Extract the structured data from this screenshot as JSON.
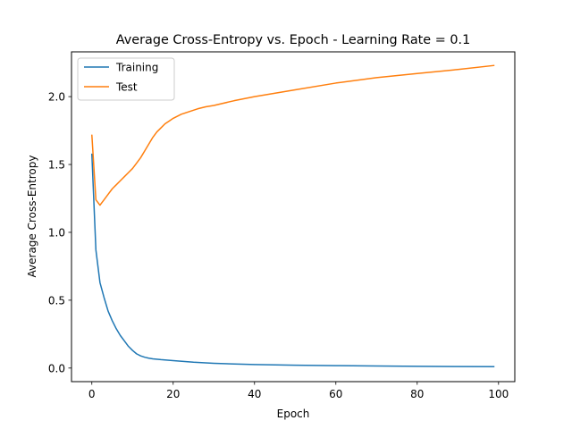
{
  "chart_data": {
    "type": "line",
    "title": "Average Cross-Entropy vs. Epoch - Learning Rate = 0.1",
    "xlabel": "Epoch",
    "ylabel": "Average Cross-Entropy",
    "xlim": [
      -5,
      104
    ],
    "ylim": [
      -0.1,
      2.33
    ],
    "xticks": [
      0,
      20,
      40,
      60,
      80,
      100
    ],
    "yticks": [
      0.0,
      0.5,
      1.0,
      1.5,
      2.0
    ],
    "grid": false,
    "legend_position": "top-left",
    "series": [
      {
        "name": "Training",
        "color": "#1f77b4",
        "x": [
          0,
          1,
          2,
          3,
          4,
          5,
          6,
          7,
          8,
          9,
          10,
          11,
          12,
          13,
          14,
          15,
          17,
          20,
          25,
          30,
          35,
          40,
          50,
          60,
          70,
          80,
          90,
          99
        ],
        "y": [
          1.58,
          0.87,
          0.63,
          0.52,
          0.42,
          0.35,
          0.29,
          0.24,
          0.2,
          0.16,
          0.13,
          0.105,
          0.09,
          0.08,
          0.073,
          0.068,
          0.062,
          0.055,
          0.043,
          0.035,
          0.03,
          0.026,
          0.021,
          0.018,
          0.015,
          0.013,
          0.011,
          0.01
        ]
      },
      {
        "name": "Test",
        "color": "#ff7f0e",
        "x": [
          0,
          1,
          2,
          3,
          4,
          5,
          6,
          7,
          8,
          9,
          10,
          11,
          12,
          13,
          14,
          15,
          16,
          17,
          18,
          19,
          20,
          22,
          24,
          26,
          28,
          30,
          35,
          40,
          50,
          60,
          70,
          80,
          90,
          99
        ],
        "y": [
          1.72,
          1.24,
          1.2,
          1.24,
          1.28,
          1.32,
          1.35,
          1.38,
          1.41,
          1.44,
          1.47,
          1.51,
          1.55,
          1.6,
          1.65,
          1.7,
          1.74,
          1.77,
          1.8,
          1.82,
          1.84,
          1.87,
          1.89,
          1.91,
          1.925,
          1.935,
          1.97,
          2.0,
          2.05,
          2.1,
          2.14,
          2.17,
          2.2,
          2.23
        ]
      }
    ]
  }
}
